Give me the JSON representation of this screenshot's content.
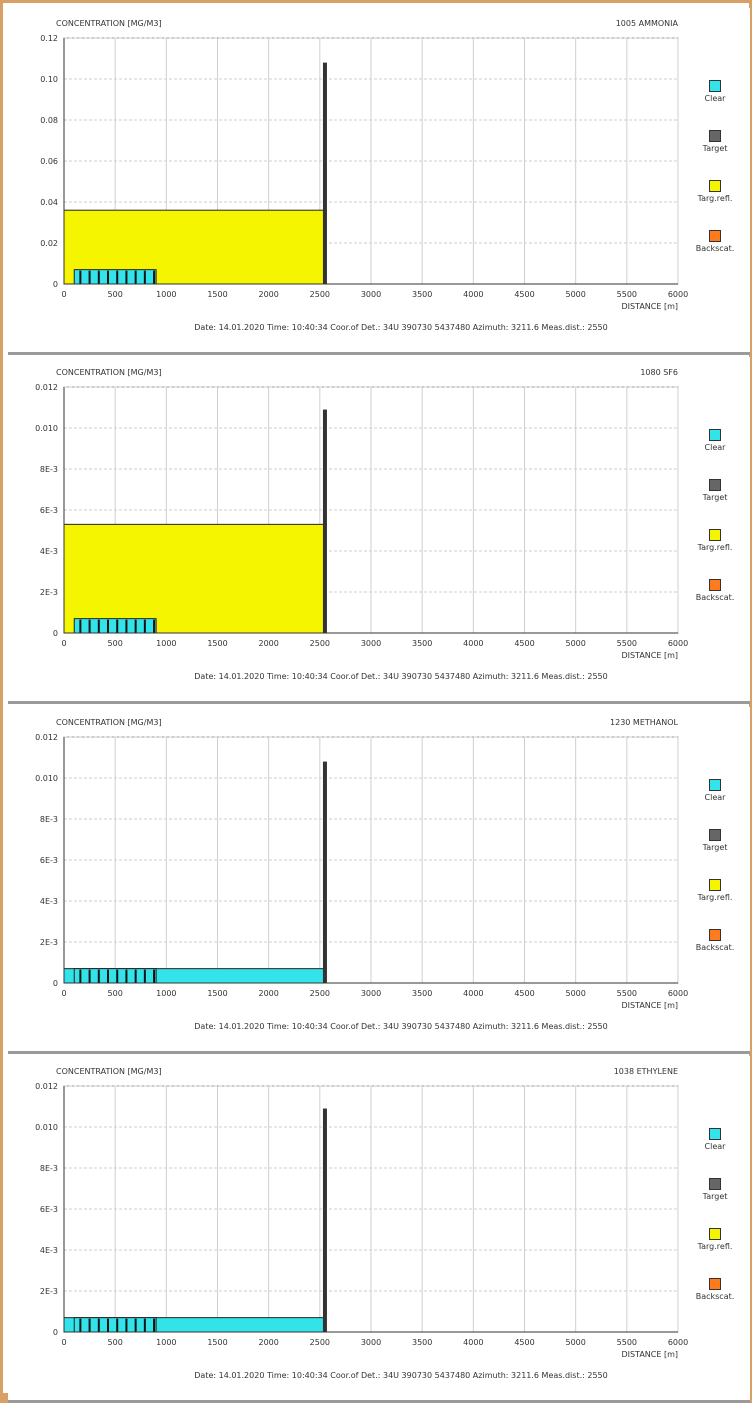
{
  "legend": [
    {
      "label": "Clear",
      "color": "#33e3ea"
    },
    {
      "label": "Target",
      "color": "#666666"
    },
    {
      "label": "Targ.refl.",
      "color": "#f5f500"
    },
    {
      "label": "Backscat.",
      "color": "#ff7a1a"
    }
  ],
  "chart_data": [
    {
      "type": "bar",
      "title": "1005 AMMONIA",
      "ylabel": "CONCENTRATION [MG/M3]",
      "xlabel": "DISTANCE [m]",
      "xlim": [
        0,
        6000
      ],
      "ylim": [
        0,
        0.12
      ],
      "x_ticks": [
        "0",
        "500",
        "1000",
        "1500",
        "2000",
        "2500",
        "3000",
        "3500",
        "4000",
        "4500",
        "5000",
        "5500",
        "6000"
      ],
      "y_ticks": [
        "0",
        "0.02",
        "0.04",
        "0.06",
        "0.08",
        "0.10",
        "0.12"
      ],
      "grid": true,
      "legend_position": "right",
      "series": [
        {
          "name": "Targ.refl.",
          "color": "#f5f500",
          "x_range": [
            0,
            2550
          ],
          "value": 0.036
        },
        {
          "name": "Clear",
          "color": "#33e3ea",
          "x_range": [
            100,
            900
          ],
          "value": 0.007
        },
        {
          "name": "Target",
          "color": "#333333",
          "x": 2550,
          "value": 0.108
        }
      ],
      "footer": "Date: 14.01.2020   Time: 10:40:34   Coor.of Det.: 34U 390730 5437480   Azimuth: 3211.6   Meas.dist.: 2550"
    },
    {
      "type": "bar",
      "title": "1080 SF6",
      "ylabel": "CONCENTRATION [MG/M3]",
      "xlabel": "DISTANCE [m]",
      "xlim": [
        0,
        6000
      ],
      "ylim": [
        0,
        0.012
      ],
      "x_ticks": [
        "0",
        "500",
        "1000",
        "1500",
        "2000",
        "2500",
        "3000",
        "3500",
        "4000",
        "4500",
        "5000",
        "5500",
        "6000"
      ],
      "y_ticks": [
        "0",
        "2E-3",
        "4E-3",
        "6E-3",
        "8E-3",
        "0.010",
        "0.012"
      ],
      "grid": true,
      "legend_position": "right",
      "series": [
        {
          "name": "Targ.refl.",
          "color": "#f5f500",
          "x_range": [
            0,
            2550
          ],
          "value": 0.0053
        },
        {
          "name": "Clear",
          "color": "#33e3ea",
          "x_range": [
            100,
            900
          ],
          "value": 0.0007
        },
        {
          "name": "Target",
          "color": "#333333",
          "x": 2550,
          "value": 0.0109
        }
      ],
      "footer": "Date: 14.01.2020   Time: 10:40:34   Coor.of Det.: 34U 390730 5437480   Azimuth: 3211.6   Meas.dist.: 2550"
    },
    {
      "type": "bar",
      "title": "1230 METHANOL",
      "ylabel": "CONCENTRATION [MG/M3]",
      "xlabel": "DISTANCE [m]",
      "xlim": [
        0,
        6000
      ],
      "ylim": [
        0,
        0.012
      ],
      "x_ticks": [
        "0",
        "500",
        "1000",
        "1500",
        "2000",
        "2500",
        "3000",
        "3500",
        "4000",
        "4500",
        "5000",
        "5500",
        "6000"
      ],
      "y_ticks": [
        "0",
        "2E-3",
        "4E-3",
        "6E-3",
        "8E-3",
        "0.010",
        "0.012"
      ],
      "grid": true,
      "legend_position": "right",
      "series": [
        {
          "name": "Clear",
          "color": "#33e3ea",
          "x_range": [
            0,
            2550
          ],
          "value": 0.0007
        },
        {
          "name": "Clear",
          "color": "#33e3ea",
          "x_range": [
            100,
            900
          ],
          "value": 0.0007
        },
        {
          "name": "Target",
          "color": "#333333",
          "x": 2550,
          "value": 0.0108
        }
      ],
      "footer": "Date: 14.01.2020   Time: 10:40:34   Coor.of Det.: 34U 390730 5437480   Azimuth: 3211.6   Meas.dist.: 2550"
    },
    {
      "type": "bar",
      "title": "1038 ETHYLENE",
      "ylabel": "CONCENTRATION [MG/M3]",
      "xlabel": "DISTANCE [m]",
      "xlim": [
        0,
        6000
      ],
      "ylim": [
        0,
        0.012
      ],
      "x_ticks": [
        "0",
        "500",
        "1000",
        "1500",
        "2000",
        "2500",
        "3000",
        "3500",
        "4000",
        "4500",
        "5000",
        "5500",
        "6000"
      ],
      "y_ticks": [
        "0",
        "2E-3",
        "4E-3",
        "6E-3",
        "8E-3",
        "0.010",
        "0.012"
      ],
      "grid": true,
      "legend_position": "right",
      "series": [
        {
          "name": "Clear",
          "color": "#33e3ea",
          "x_range": [
            0,
            2550
          ],
          "value": 0.0007
        },
        {
          "name": "Clear",
          "color": "#33e3ea",
          "x_range": [
            100,
            900
          ],
          "value": 0.0007
        },
        {
          "name": "Target",
          "color": "#333333",
          "x": 2550,
          "value": 0.0109
        }
      ],
      "footer": "Date: 14.01.2020   Time: 10:40:34   Coor.of Det.: 34U 390730 5437480   Azimuth: 3211.6   Meas.dist.: 2550"
    }
  ]
}
